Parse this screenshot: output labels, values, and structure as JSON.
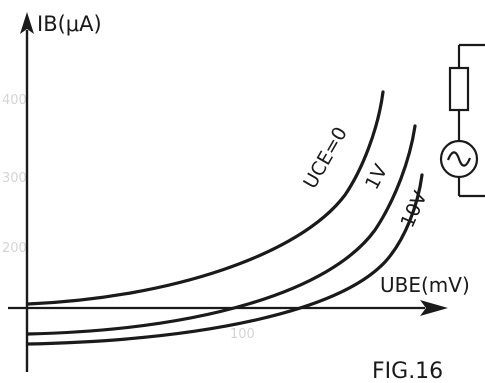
{
  "figure": {
    "number_label": "FIG.16",
    "axes": {
      "y_label": "IB(μA)",
      "x_label": "UBE(mV)"
    },
    "curves": [
      {
        "label": "UCE=0"
      },
      {
        "label": "1V"
      },
      {
        "label": "10V"
      }
    ],
    "faint_background_labels": [
      "400",
      "300",
      "200",
      "100"
    ],
    "colors": {
      "ink": "#1a1a1a",
      "paper": "#ffffff",
      "ghost": "#d4d4d4"
    }
  }
}
